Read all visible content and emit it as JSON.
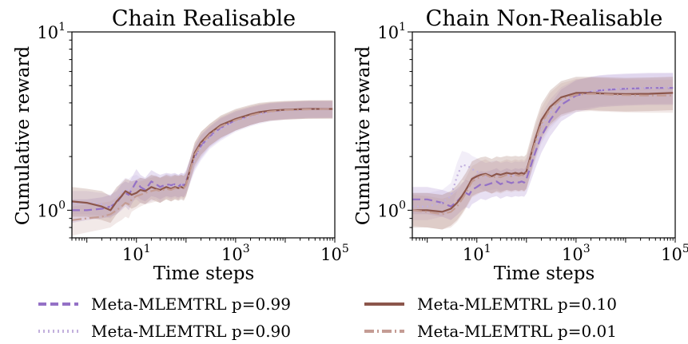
{
  "chart_data": [
    {
      "type": "line",
      "title": "Chain Realisable",
      "xlabel": "Time steps",
      "ylabel": "Cumulative reward",
      "xscale": "log",
      "yscale": "log",
      "xlim": [
        0.5,
        100000
      ],
      "ylim": [
        0.7,
        10
      ],
      "x_tick_labels": [
        {
          "base": "10",
          "exp": "1"
        },
        {
          "base": "10",
          "exp": "3"
        },
        {
          "base": "10",
          "exp": "5"
        }
      ],
      "y_tick_labels": [
        {
          "base": "10",
          "exp": "0"
        },
        {
          "base": "10",
          "exp": "1"
        }
      ],
      "x": [
        0.5,
        1,
        2,
        3,
        4,
        5,
        6,
        7,
        8,
        10,
        12,
        15,
        20,
        25,
        30,
        40,
        50,
        60,
        70,
        80,
        90,
        100,
        150,
        200,
        300,
        500,
        1000,
        2000,
        3000,
        5000,
        10000,
        30000,
        90000
      ],
      "series": [
        {
          "name": "Meta-MLEMTRL p=0.99",
          "color": "#9471c6",
          "dash": "dash",
          "values": [
            1.0,
            1.0,
            1.02,
            1.05,
            1.1,
            1.2,
            1.25,
            1.22,
            1.3,
            1.45,
            1.35,
            1.3,
            1.45,
            1.4,
            1.35,
            1.4,
            1.38,
            1.4,
            1.36,
            1.4,
            1.38,
            1.45,
            2.0,
            2.3,
            2.6,
            2.9,
            3.2,
            3.4,
            3.5,
            3.6,
            3.65,
            3.7,
            3.7
          ],
          "lower": [
            0.85,
            0.88,
            0.9,
            0.92,
            0.95,
            1.0,
            1.05,
            1.0,
            1.08,
            1.2,
            1.15,
            1.12,
            1.2,
            1.18,
            1.15,
            1.2,
            1.18,
            1.2,
            1.18,
            1.2,
            1.18,
            1.25,
            1.7,
            1.95,
            2.25,
            2.5,
            2.8,
            3.0,
            3.1,
            3.2,
            3.25,
            3.3,
            3.3
          ],
          "upper": [
            1.15,
            1.15,
            1.18,
            1.22,
            1.28,
            1.4,
            1.45,
            1.42,
            1.52,
            1.7,
            1.58,
            1.52,
            1.68,
            1.62,
            1.58,
            1.62,
            1.6,
            1.62,
            1.58,
            1.62,
            1.6,
            1.68,
            2.3,
            2.65,
            2.95,
            3.3,
            3.6,
            3.8,
            3.9,
            4.0,
            4.05,
            4.1,
            4.1
          ]
        },
        {
          "name": "Meta-MLEMTRL p=0.90",
          "color": "#c2b0dd",
          "dash": "dot",
          "values": [
            1.1,
            1.1,
            1.08,
            1.05,
            1.15,
            1.25,
            1.3,
            1.28,
            1.32,
            1.35,
            1.3,
            1.28,
            1.32,
            1.35,
            1.3,
            1.38,
            1.35,
            1.38,
            1.35,
            1.4,
            1.38,
            1.42,
            1.95,
            2.25,
            2.55,
            2.85,
            3.15,
            3.35,
            3.45,
            3.55,
            3.62,
            3.68,
            3.7
          ],
          "lower": [
            0.95,
            0.95,
            0.93,
            0.9,
            0.98,
            1.05,
            1.1,
            1.08,
            1.12,
            1.15,
            1.1,
            1.08,
            1.12,
            1.15,
            1.1,
            1.18,
            1.15,
            1.18,
            1.15,
            1.2,
            1.18,
            1.22,
            1.65,
            1.9,
            2.2,
            2.45,
            2.75,
            2.95,
            3.05,
            3.15,
            3.22,
            3.28,
            3.3
          ],
          "upper": [
            1.28,
            1.28,
            1.25,
            1.22,
            1.32,
            1.45,
            1.52,
            1.5,
            1.55,
            1.58,
            1.52,
            1.5,
            1.55,
            1.58,
            1.52,
            1.6,
            1.58,
            1.6,
            1.58,
            1.62,
            1.6,
            1.65,
            2.25,
            2.6,
            2.9,
            3.25,
            3.55,
            3.75,
            3.85,
            3.95,
            4.02,
            4.08,
            4.1
          ]
        },
        {
          "name": "Meta-MLEMTRL p=0.10",
          "color": "#8c564b",
          "dash": "solid",
          "values": [
            1.12,
            1.1,
            1.05,
            1.0,
            1.12,
            1.2,
            1.28,
            1.25,
            1.22,
            1.25,
            1.3,
            1.28,
            1.35,
            1.32,
            1.3,
            1.35,
            1.32,
            1.35,
            1.33,
            1.35,
            1.33,
            1.4,
            2.1,
            2.4,
            2.7,
            3.0,
            3.25,
            3.45,
            3.55,
            3.62,
            3.66,
            3.7,
            3.7
          ],
          "lower": [
            0.92,
            0.92,
            0.88,
            0.85,
            0.95,
            1.02,
            1.08,
            1.05,
            1.02,
            1.05,
            1.1,
            1.08,
            1.15,
            1.12,
            1.1,
            1.15,
            1.12,
            1.15,
            1.13,
            1.15,
            1.13,
            1.2,
            1.8,
            2.05,
            2.3,
            2.55,
            2.8,
            3.0,
            3.1,
            3.18,
            3.22,
            3.26,
            3.26
          ],
          "upper": [
            1.35,
            1.32,
            1.28,
            1.2,
            1.35,
            1.42,
            1.5,
            1.48,
            1.45,
            1.48,
            1.52,
            1.5,
            1.58,
            1.55,
            1.52,
            1.58,
            1.55,
            1.58,
            1.56,
            1.58,
            1.56,
            1.62,
            2.4,
            2.75,
            3.05,
            3.4,
            3.7,
            3.9,
            4.0,
            4.06,
            4.1,
            4.14,
            4.14
          ]
        },
        {
          "name": "Meta-MLEMTRL p=0.01",
          "color": "#c49c94",
          "dash": "dashdot",
          "values": [
            0.88,
            0.9,
            0.92,
            0.95,
            1.0,
            1.05,
            1.1,
            1.08,
            1.15,
            1.2,
            1.22,
            1.25,
            1.28,
            1.3,
            1.28,
            1.32,
            1.3,
            1.33,
            1.32,
            1.35,
            1.33,
            1.38,
            2.05,
            2.35,
            2.65,
            2.95,
            3.2,
            3.4,
            3.5,
            3.58,
            3.64,
            3.68,
            3.7
          ],
          "lower": [
            0.72,
            0.75,
            0.78,
            0.8,
            0.85,
            0.88,
            0.92,
            0.9,
            0.98,
            1.02,
            1.05,
            1.08,
            1.1,
            1.12,
            1.1,
            1.15,
            1.12,
            1.15,
            1.14,
            1.18,
            1.15,
            1.2,
            1.75,
            2.0,
            2.3,
            2.55,
            2.8,
            3.0,
            3.1,
            3.18,
            3.22,
            3.26,
            3.28
          ],
          "upper": [
            1.05,
            1.08,
            1.1,
            1.12,
            1.18,
            1.25,
            1.3,
            1.28,
            1.35,
            1.42,
            1.45,
            1.48,
            1.52,
            1.55,
            1.52,
            1.55,
            1.52,
            1.56,
            1.55,
            1.58,
            1.55,
            1.6,
            2.4,
            2.75,
            3.05,
            3.35,
            3.65,
            3.85,
            3.95,
            4.02,
            4.08,
            4.12,
            4.14
          ]
        }
      ]
    },
    {
      "type": "line",
      "title": "Chain Non-Realisable",
      "xlabel": "Time steps",
      "ylabel": "Cumulative reward",
      "xscale": "log",
      "yscale": "log",
      "xlim": [
        0.5,
        100000
      ],
      "ylim": [
        0.7,
        10
      ],
      "x_tick_labels": [
        {
          "base": "10",
          "exp": "1"
        },
        {
          "base": "10",
          "exp": "3"
        },
        {
          "base": "10",
          "exp": "5"
        }
      ],
      "y_tick_labels": [
        {
          "base": "10",
          "exp": "0"
        },
        {
          "base": "10",
          "exp": "1"
        }
      ],
      "x": [
        0.5,
        1,
        2,
        3,
        4,
        5,
        6,
        7,
        8,
        10,
        12,
        15,
        20,
        25,
        30,
        40,
        50,
        60,
        70,
        80,
        90,
        100,
        150,
        200,
        300,
        500,
        1000,
        2000,
        3000,
        5000,
        10000,
        30000,
        90000
      ],
      "series": [
        {
          "name": "Meta-MLEMTRL p=0.99",
          "color": "#9471c6",
          "dash": "dash",
          "values": [
            1.15,
            1.15,
            1.1,
            1.05,
            1.12,
            1.2,
            1.25,
            1.22,
            1.3,
            1.35,
            1.4,
            1.38,
            1.42,
            1.45,
            1.4,
            1.45,
            1.42,
            1.45,
            1.43,
            1.45,
            1.43,
            1.5,
            2.1,
            2.6,
            3.2,
            3.9,
            4.4,
            4.6,
            4.7,
            4.75,
            4.8,
            4.85,
            4.85
          ],
          "lower": [
            0.95,
            0.95,
            0.92,
            0.88,
            0.94,
            1.0,
            1.04,
            1.02,
            1.08,
            1.12,
            1.16,
            1.14,
            1.18,
            1.2,
            1.16,
            1.2,
            1.18,
            1.2,
            1.19,
            1.2,
            1.19,
            1.24,
            1.7,
            2.1,
            2.6,
            3.15,
            3.55,
            3.7,
            3.78,
            3.82,
            3.86,
            3.9,
            3.9
          ],
          "upper": [
            1.35,
            1.35,
            1.3,
            1.25,
            1.32,
            1.42,
            1.48,
            1.45,
            1.54,
            1.6,
            1.66,
            1.64,
            1.68,
            1.72,
            1.66,
            1.72,
            1.68,
            1.72,
            1.7,
            1.72,
            1.7,
            1.78,
            2.55,
            3.15,
            3.9,
            4.75,
            5.35,
            5.6,
            5.72,
            5.78,
            5.84,
            5.9,
            5.9
          ]
        },
        {
          "name": "Meta-MLEMTRL p=0.90",
          "color": "#c2b0dd",
          "dash": "dot",
          "values": [
            1.05,
            1.05,
            1.1,
            1.2,
            1.55,
            1.8,
            1.78,
            1.75,
            1.7,
            1.65,
            1.6,
            1.55,
            1.58,
            1.6,
            1.55,
            1.58,
            1.55,
            1.58,
            1.56,
            1.58,
            1.56,
            1.62,
            2.3,
            2.9,
            3.5,
            4.1,
            4.5,
            4.65,
            4.72,
            4.78,
            4.82,
            4.86,
            4.88
          ],
          "lower": [
            0.88,
            0.88,
            0.92,
            1.0,
            1.28,
            1.48,
            1.46,
            1.44,
            1.4,
            1.36,
            1.32,
            1.28,
            1.3,
            1.32,
            1.28,
            1.3,
            1.28,
            1.3,
            1.29,
            1.3,
            1.29,
            1.34,
            1.88,
            2.36,
            2.85,
            3.34,
            3.66,
            3.78,
            3.84,
            3.88,
            3.92,
            3.95,
            3.96
          ],
          "upper": [
            1.25,
            1.25,
            1.3,
            1.42,
            1.85,
            2.15,
            2.12,
            2.08,
            2.02,
            1.96,
            1.9,
            1.84,
            1.88,
            1.9,
            1.84,
            1.88,
            1.84,
            1.88,
            1.86,
            1.88,
            1.86,
            1.93,
            2.75,
            3.45,
            4.18,
            4.9,
            5.4,
            5.58,
            5.66,
            5.73,
            5.78,
            5.83,
            5.86
          ]
        },
        {
          "name": "Meta-MLEMTRL p=0.10",
          "color": "#8c564b",
          "dash": "solid",
          "values": [
            1.0,
            1.0,
            0.98,
            1.02,
            1.1,
            1.2,
            1.3,
            1.4,
            1.5,
            1.55,
            1.58,
            1.6,
            1.55,
            1.6,
            1.58,
            1.62,
            1.6,
            1.62,
            1.6,
            1.62,
            1.6,
            1.65,
            2.5,
            3.2,
            3.8,
            4.3,
            4.55,
            4.55,
            4.52,
            4.5,
            4.48,
            4.5,
            4.55
          ],
          "lower": [
            0.8,
            0.8,
            0.78,
            0.82,
            0.88,
            0.96,
            1.04,
            1.12,
            1.2,
            1.24,
            1.26,
            1.28,
            1.24,
            1.28,
            1.26,
            1.3,
            1.28,
            1.3,
            1.28,
            1.3,
            1.28,
            1.32,
            2.0,
            2.56,
            3.04,
            3.44,
            3.64,
            3.64,
            3.62,
            3.6,
            3.58,
            3.6,
            3.64
          ],
          "upper": [
            1.25,
            1.25,
            1.22,
            1.28,
            1.38,
            1.5,
            1.62,
            1.75,
            1.88,
            1.94,
            1.98,
            2.0,
            1.94,
            2.0,
            1.98,
            2.02,
            2.0,
            2.02,
            2.0,
            2.02,
            2.0,
            2.06,
            3.1,
            3.95,
            4.7,
            5.3,
            5.6,
            5.6,
            5.58,
            5.55,
            5.52,
            5.55,
            5.6
          ]
        },
        {
          "name": "Meta-MLEMTRL p=0.01",
          "color": "#c49c94",
          "dash": "dashdot",
          "values": [
            1.0,
            0.98,
            0.95,
            0.98,
            1.05,
            1.15,
            1.25,
            1.35,
            1.45,
            1.5,
            1.55,
            1.58,
            1.52,
            1.55,
            1.53,
            1.58,
            1.55,
            1.58,
            1.56,
            1.58,
            1.56,
            1.62,
            2.4,
            3.05,
            3.7,
            4.2,
            4.45,
            4.5,
            4.48,
            4.45,
            4.42,
            4.4,
            4.4
          ],
          "lower": [
            0.82,
            0.8,
            0.78,
            0.8,
            0.86,
            0.94,
            1.02,
            1.1,
            1.18,
            1.22,
            1.26,
            1.28,
            1.24,
            1.26,
            1.24,
            1.28,
            1.26,
            1.28,
            1.27,
            1.28,
            1.27,
            1.31,
            1.92,
            2.44,
            2.96,
            3.36,
            3.56,
            3.6,
            3.58,
            3.56,
            3.54,
            3.52,
            3.52
          ],
          "upper": [
            1.22,
            1.2,
            1.16,
            1.2,
            1.28,
            1.4,
            1.52,
            1.65,
            1.77,
            1.83,
            1.89,
            1.93,
            1.85,
            1.89,
            1.87,
            1.93,
            1.89,
            1.93,
            1.9,
            1.93,
            1.9,
            1.98,
            2.95,
            3.75,
            4.55,
            5.15,
            5.45,
            5.52,
            5.5,
            5.46,
            5.42,
            5.4,
            5.4
          ]
        }
      ]
    }
  ],
  "legend": {
    "placement": "bottom",
    "entries": [
      {
        "label": "Meta-MLEMTRL p=0.99",
        "color": "#9471c6",
        "dash": "dash"
      },
      {
        "label": "Meta-MLEMTRL p=0.90",
        "color": "#c2b0dd",
        "dash": "dot"
      },
      {
        "label": "Meta-MLEMTRL p=0.10",
        "color": "#8c564b",
        "dash": "solid"
      },
      {
        "label": "Meta-MLEMTRL p=0.01",
        "color": "#c49c94",
        "dash": "dashdot"
      }
    ]
  }
}
